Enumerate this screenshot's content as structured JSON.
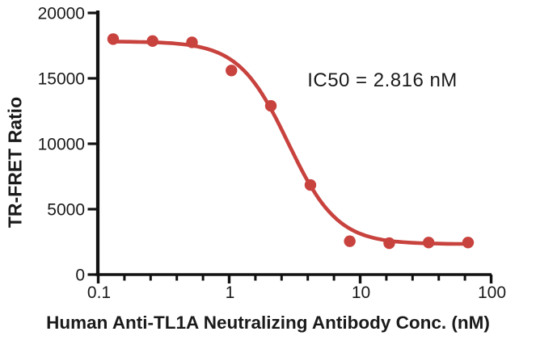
{
  "chart_data": {
    "type": "scatter",
    "title": "",
    "xlabel": "Human Anti-TL1A Neutralizing Antibody Conc. (nM)",
    "ylabel": "TR-FRET Ratio",
    "annotation": "IC50 = 2.816 nM",
    "xscale": "log",
    "xlim": [
      0.1,
      100
    ],
    "ylim": [
      0,
      20000
    ],
    "x_major_ticks": [
      0.1,
      1,
      10,
      100
    ],
    "x_major_tick_labels": [
      "0.1",
      "1",
      "10",
      "100"
    ],
    "x_minor_ticks_per_decade": 4,
    "y_ticks": [
      0,
      5000,
      10000,
      15000,
      20000
    ],
    "y_tick_labels": [
      "0",
      "5000",
      "10000",
      "15000",
      "20000"
    ],
    "grid": false,
    "legend": "none",
    "series": [
      {
        "marker": "circle",
        "color": "#C8423E",
        "points": [
          {
            "x": 0.13,
            "y": 18000
          },
          {
            "x": 0.26,
            "y": 17850
          },
          {
            "x": 0.52,
            "y": 17750
          },
          {
            "x": 1.04,
            "y": 15600
          },
          {
            "x": 2.08,
            "y": 12900
          },
          {
            "x": 4.17,
            "y": 6850
          },
          {
            "x": 8.33,
            "y": 2550
          },
          {
            "x": 16.67,
            "y": 2400
          },
          {
            "x": 33.33,
            "y": 2450
          },
          {
            "x": 66.67,
            "y": 2450
          }
        ]
      }
    ],
    "fit_curve": {
      "model": "four-parameter-logistic",
      "top": 17820,
      "bottom": 2330,
      "ic50_nM": 2.816,
      "hill_slope": 2.3,
      "x_start": 0.127,
      "x_end": 68,
      "color": "#C8423E"
    },
    "colors": {
      "series": "#C8423E",
      "axis": "#111111",
      "text": "#1a1a1a"
    }
  }
}
